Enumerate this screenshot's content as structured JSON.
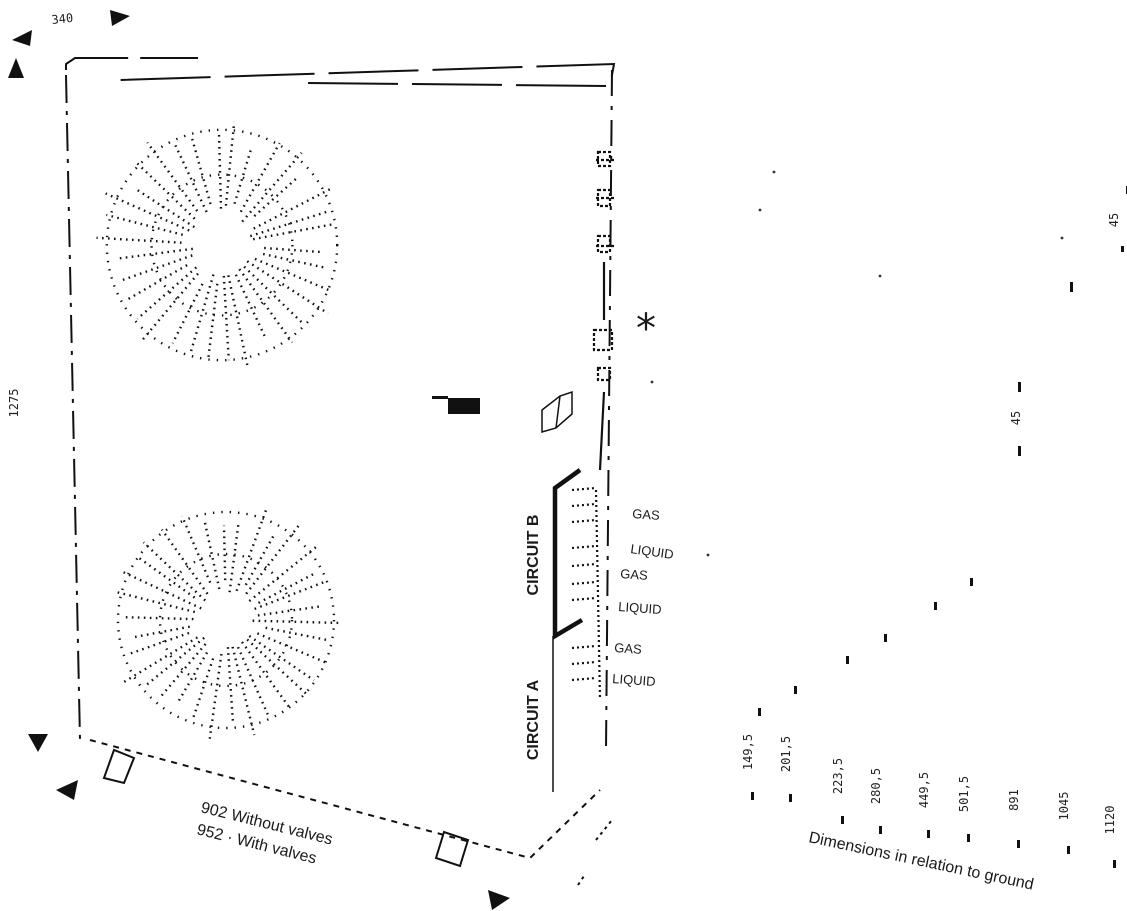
{
  "diagram": {
    "dims": {
      "depth": "340",
      "height": "1275",
      "width_without": "902 Without valves",
      "width_with": "952 ·  With valves",
      "side_45_top": "45",
      "side_45_mid": "45"
    },
    "asterisk": "*",
    "circuits": {
      "b": "CIRCUIT B",
      "a": "CIRCUIT A"
    },
    "connections": [
      "GAS",
      "LIQUID",
      "GAS",
      "LIQUID",
      "GAS",
      "LIQUID"
    ],
    "ground_dims": [
      "149,5",
      "201,5",
      "223,5",
      "280,5",
      "449,5",
      "501,5",
      "891",
      "1045",
      "1120"
    ],
    "ground_caption": "Dimensions in relation to ground"
  }
}
